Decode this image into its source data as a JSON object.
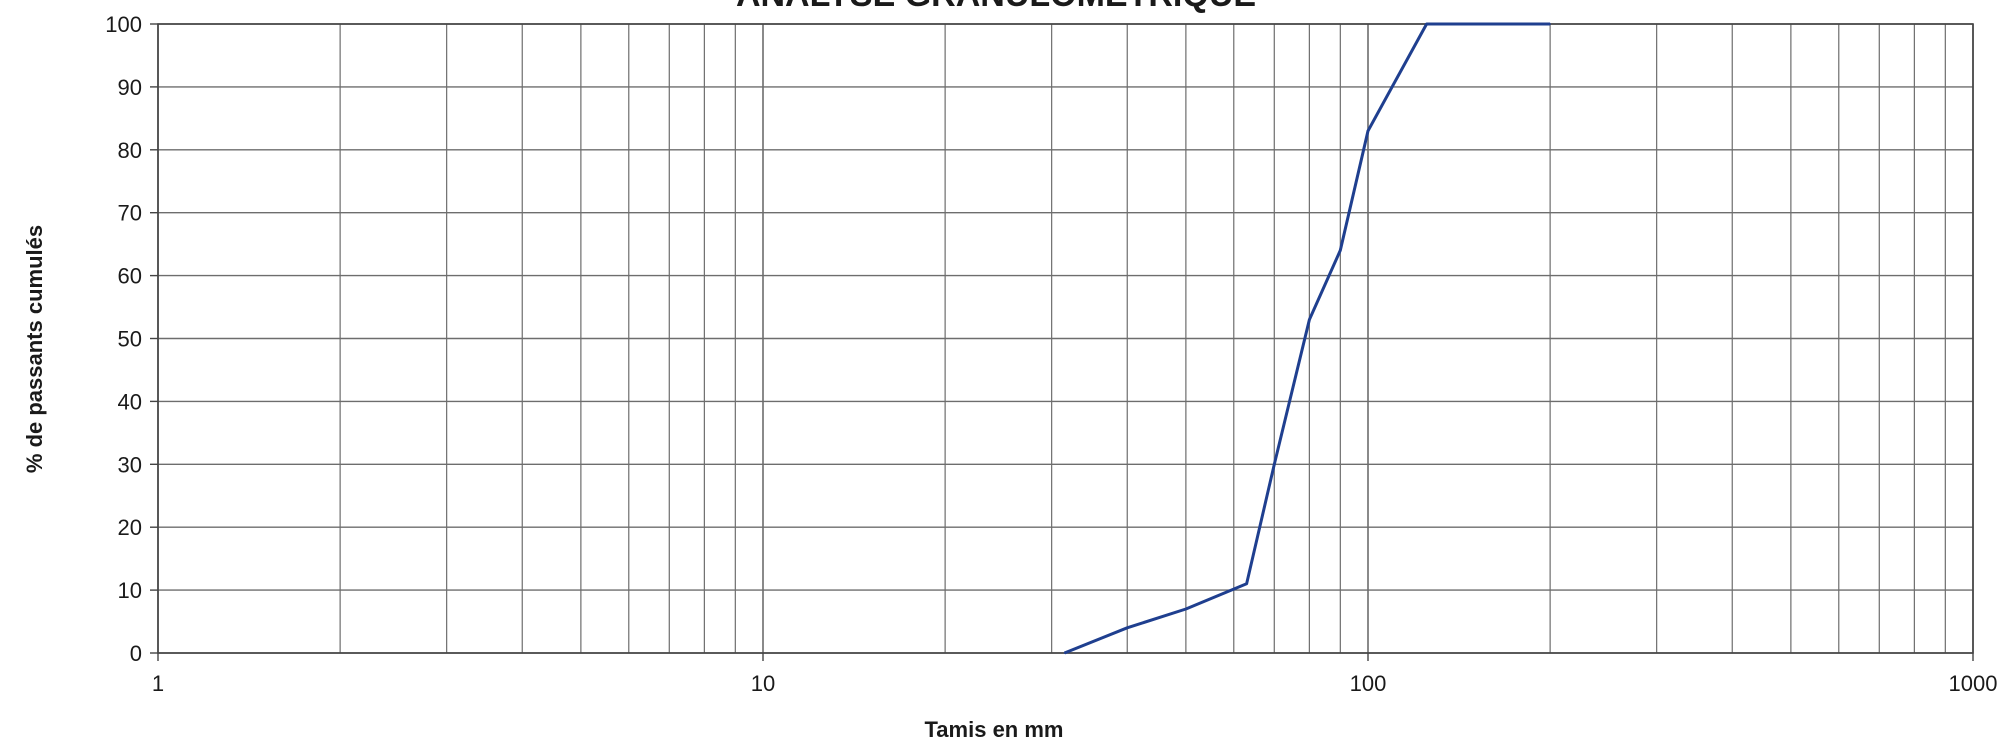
{
  "chart_data": {
    "type": "line",
    "title": "ANALYSE GRANULOMETRIQUE",
    "xlabel": "Tamis en mm",
    "ylabel": "% de passants cumulés",
    "x_scale": "log",
    "xlim": [
      1,
      1000
    ],
    "ylim": [
      0,
      100
    ],
    "grid": true,
    "x_tick_labels": [
      "1",
      "10",
      "100",
      "1000"
    ],
    "y_tick_labels": [
      "0",
      "10",
      "20",
      "30",
      "40",
      "50",
      "60",
      "70",
      "80",
      "90",
      "100"
    ],
    "series": [
      {
        "color": "#1f3f8f",
        "x": [
          31.5,
          40,
          50,
          63,
          70,
          80,
          90,
          100,
          125,
          200
        ],
        "y": [
          0,
          4,
          7,
          11,
          30,
          53,
          64,
          83,
          100,
          100
        ]
      }
    ]
  }
}
